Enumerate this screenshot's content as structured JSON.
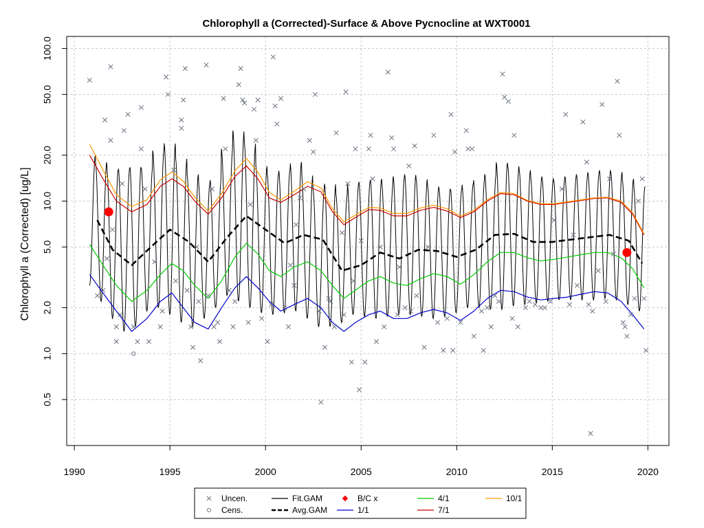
{
  "chart_data": {
    "type": "line",
    "title": "Chlorophyll a (Corrected)-Surface & Above Pycnocline at WXT0001",
    "xlabel": "",
    "ylabel": "Chlorophyll a (Corrected) [ug/L]",
    "xlim": [
      1989.6,
      2021.1
    ],
    "ylim": [
      0.25,
      120
    ],
    "y_log_scale": true,
    "grid": true,
    "x_ticks": [
      1990,
      1995,
      2000,
      2005,
      2010,
      2015,
      2020
    ],
    "x_tick_labels": [
      "1990",
      "1995",
      "2000",
      "2005",
      "2010",
      "2015",
      "2020"
    ],
    "y_ticks": [
      0.5,
      1,
      2,
      5,
      10,
      20,
      50,
      100
    ],
    "y_tick_labels": [
      "0.5",
      "1.0",
      "2.0",
      "5.0",
      "10.0",
      "20.0",
      "50.0",
      "100.0"
    ],
    "colors": {
      "uncen": "#6b7280",
      "cens": "#6b7280",
      "fit_gam": "#000000",
      "avg_gam": "#000000",
      "bc": "#ff0000",
      "d1_1": "#0000cc",
      "d4_1": "#00cc00",
      "d7_1": "#cc0000",
      "d10_1": "#ff9900"
    },
    "legend": {
      "position": "bottom",
      "entries": [
        {
          "key": "uncen",
          "label": "Uncen."
        },
        {
          "key": "cens",
          "label": "Cens."
        },
        {
          "key": "fit_gam",
          "label": "Fit.GAM"
        },
        {
          "key": "avg_gam",
          "label": "Avg.GAM"
        },
        {
          "key": "bc",
          "label": "B/C x"
        },
        {
          "key": "d1_1",
          "label": "1/1"
        },
        {
          "key": "d4_1",
          "label": "4/1"
        },
        {
          "key": "d7_1",
          "label": "7/1"
        },
        {
          "key": "d10_1",
          "label": "10/1"
        }
      ]
    },
    "bc_points": [
      {
        "x": 1991.8,
        "y": 8.5
      },
      {
        "x": 2018.9,
        "y": 4.6
      }
    ],
    "series": [
      {
        "name": "Avg.GAM",
        "key": "avg_gam",
        "x": [
          1991.2,
          1992,
          1993,
          1994,
          1995,
          1996,
          1997,
          1998,
          1999,
          2000,
          2001,
          2002,
          2003,
          2004,
          2005,
          2006,
          2007,
          2008,
          2009,
          2010,
          2011,
          2012,
          2013,
          2014,
          2015,
          2016,
          2017,
          2018,
          2019,
          2019.7
        ],
        "y": [
          7.5,
          4.8,
          3.8,
          5.0,
          6.5,
          5.4,
          4.0,
          5.8,
          8.0,
          6.5,
          5.3,
          6.0,
          5.6,
          3.5,
          3.8,
          4.6,
          4.2,
          4.8,
          4.7,
          4.3,
          4.8,
          6.0,
          6.1,
          5.4,
          5.4,
          5.6,
          5.8,
          6.0,
          5.5,
          3.9
        ]
      },
      {
        "name": "1/1",
        "key": "d1_1",
        "x": [
          1990.8,
          1991.5,
          1992.2,
          1993,
          1993.8,
          1994.5,
          1995.1,
          1995.7,
          1996.3,
          1997,
          1997.7,
          1998.4,
          1999,
          1999.6,
          2000.2,
          2000.8,
          2001.5,
          2002.2,
          2002.9,
          2003.5,
          2004.1,
          2004.7,
          2005.4,
          2006,
          2006.7,
          2007.4,
          2008.1,
          2008.8,
          2009.5,
          2010.2,
          2010.9,
          2011.6,
          2012.3,
          2013,
          2013.7,
          2014.4,
          2015.1,
          2015.8,
          2016.5,
          2017.2,
          2017.9,
          2018.6,
          2019.2,
          2019.8
        ],
        "y": [
          3.3,
          2.5,
          1.9,
          1.4,
          1.7,
          2.2,
          2.5,
          2.0,
          1.6,
          1.45,
          2.0,
          2.7,
          3.2,
          2.7,
          2.2,
          1.9,
          2.1,
          2.3,
          2.0,
          1.6,
          1.4,
          1.6,
          1.8,
          1.9,
          1.7,
          1.7,
          1.85,
          1.95,
          1.85,
          1.65,
          1.9,
          2.3,
          2.6,
          2.55,
          2.35,
          2.25,
          2.3,
          2.35,
          2.45,
          2.55,
          2.5,
          2.2,
          1.8,
          1.45
        ]
      },
      {
        "name": "4/1",
        "key": "d4_1",
        "x": [
          1990.8,
          1991.5,
          1992.2,
          1993,
          1993.8,
          1994.5,
          1995.1,
          1995.7,
          1996.3,
          1997,
          1997.7,
          1998.4,
          1999,
          1999.6,
          2000.2,
          2000.8,
          2001.5,
          2002.2,
          2002.9,
          2003.5,
          2004.1,
          2004.7,
          2005.4,
          2006,
          2006.7,
          2007.4,
          2008.1,
          2008.8,
          2009.5,
          2010.2,
          2010.9,
          2011.6,
          2012.3,
          2013,
          2013.7,
          2014.4,
          2015.1,
          2015.8,
          2016.5,
          2017.2,
          2017.9,
          2018.6,
          2019.2,
          2019.8
        ],
        "y": [
          5.2,
          3.8,
          2.8,
          2.2,
          2.6,
          3.3,
          3.9,
          3.5,
          2.8,
          2.3,
          3.0,
          4.3,
          5.3,
          4.5,
          3.5,
          3.2,
          3.7,
          4.0,
          3.5,
          2.8,
          2.3,
          2.6,
          3.0,
          3.2,
          2.9,
          2.8,
          3.1,
          3.35,
          3.2,
          2.85,
          3.3,
          4.0,
          4.6,
          4.6,
          4.25,
          4.05,
          4.15,
          4.3,
          4.45,
          4.6,
          4.6,
          4.25,
          3.6,
          2.7
        ]
      },
      {
        "name": "7/1",
        "key": "d7_1",
        "x": [
          1990.8,
          1991.5,
          1992.2,
          1993,
          1993.8,
          1994.5,
          1995.1,
          1995.7,
          1996.3,
          1997,
          1997.7,
          1998.4,
          1999,
          1999.6,
          2000.2,
          2000.8,
          2001.5,
          2002.2,
          2002.9,
          2003.5,
          2004.1,
          2004.7,
          2005.4,
          2006,
          2006.7,
          2007.4,
          2008.1,
          2008.8,
          2009.5,
          2010.2,
          2010.9,
          2011.6,
          2012.3,
          2013,
          2013.7,
          2014.4,
          2015.1,
          2015.8,
          2016.5,
          2017.2,
          2017.9,
          2018.6,
          2019.2,
          2019.8
        ],
        "y": [
          20,
          14,
          10,
          8.5,
          9.5,
          12.5,
          14,
          12.5,
          10,
          8.2,
          10.5,
          14.5,
          17,
          14,
          10.5,
          9.8,
          11,
          12.5,
          11.5,
          8.5,
          7.0,
          7.8,
          8.8,
          8.7,
          8.0,
          8.0,
          8.7,
          9.1,
          8.6,
          7.8,
          8.5,
          10.0,
          11.2,
          11.0,
          10.0,
          9.5,
          9.5,
          9.8,
          10.1,
          10.4,
          10.5,
          9.8,
          8.2,
          6.0
        ]
      },
      {
        "name": "10/1",
        "key": "d10_1",
        "x": [
          1990.8,
          1991.5,
          1992.2,
          1993,
          1993.8,
          1994.5,
          1995.1,
          1995.7,
          1996.3,
          1997,
          1997.7,
          1998.4,
          1999,
          1999.6,
          2000.2,
          2000.8,
          2001.5,
          2002.2,
          2002.9,
          2003.5,
          2004.1,
          2004.7,
          2005.4,
          2006,
          2006.7,
          2007.4,
          2008.1,
          2008.8,
          2009.5,
          2010.2,
          2010.9,
          2011.6,
          2012.3,
          2013,
          2013.7,
          2014.4,
          2015.1,
          2015.8,
          2016.5,
          2017.2,
          2017.9,
          2018.6,
          2019.2,
          2019.8
        ],
        "y": [
          23.5,
          16,
          11,
          9.2,
          10.2,
          13.8,
          15.5,
          13.5,
          10.6,
          8.6,
          11.2,
          15.8,
          19,
          15.5,
          11.4,
          10.2,
          11.6,
          13.4,
          12.2,
          8.9,
          7.3,
          8.1,
          9.1,
          9.0,
          8.3,
          8.3,
          9.0,
          9.4,
          8.9,
          8.0,
          8.7,
          10.2,
          11.4,
          11.2,
          10.1,
          9.6,
          9.6,
          9.9,
          10.2,
          10.5,
          10.6,
          10.0,
          8.4,
          6.1
        ]
      }
    ],
    "fit_gam": {
      "name": "Fit.GAM",
      "x_start": 1990.8,
      "x_end": 2019.85,
      "cycle_years": 0.5,
      "peaks": [
        20,
        18,
        16,
        16.5,
        17,
        16.5,
        21.5,
        24,
        19,
        15,
        13,
        14,
        22,
        29,
        24,
        17,
        15,
        16,
        18,
        15,
        12,
        13,
        11,
        13,
        13.5,
        14,
        13,
        14.5,
        15,
        14,
        12.5,
        12,
        12,
        13,
        14,
        15,
        18,
        17,
        16,
        14.5,
        14,
        14,
        14.5,
        15,
        15.5,
        16,
        15.5,
        14,
        12.5
      ],
      "troughs": [
        2.8,
        2.2,
        1.7,
        1.4,
        1.5,
        1.9,
        2.0,
        1.8,
        1.6,
        1.5,
        1.7,
        2.0,
        2.4,
        2.2,
        2.0,
        1.85,
        1.8,
        1.85,
        1.9,
        1.7,
        1.5,
        1.5,
        1.6,
        1.8,
        1.75,
        1.7,
        1.75,
        1.8,
        1.8,
        1.75,
        1.7,
        1.75,
        1.85,
        2.0,
        2.0,
        1.95,
        1.95,
        2.05,
        2.1,
        2.15,
        2.2,
        2.25,
        2.25,
        2.25,
        2.25,
        2.3,
        2.25,
        2.1,
        1.9
      ]
    },
    "uncen_points": [
      {
        "x": 1990.8,
        "y": 62
      },
      {
        "x": 1991.2,
        "y": 2.4
      },
      {
        "x": 1991.5,
        "y": 2.6
      },
      {
        "x": 1991.6,
        "y": 34
      },
      {
        "x": 1991.7,
        "y": 4.2
      },
      {
        "x": 1991.9,
        "y": 25
      },
      {
        "x": 1991.9,
        "y": 76
      },
      {
        "x": 1992.0,
        "y": 6.5
      },
      {
        "x": 1992.2,
        "y": 1.5
      },
      {
        "x": 1992.2,
        "y": 1.2
      },
      {
        "x": 1992.4,
        "y": 1.8
      },
      {
        "x": 1992.5,
        "y": 13
      },
      {
        "x": 1992.6,
        "y": 29
      },
      {
        "x": 1992.8,
        "y": 37
      },
      {
        "x": 1993.1,
        "y": 1.5
      },
      {
        "x": 1993.3,
        "y": 1.2
      },
      {
        "x": 1993.5,
        "y": 22
      },
      {
        "x": 1993.5,
        "y": 41
      },
      {
        "x": 1993.7,
        "y": 12
      },
      {
        "x": 1993.9,
        "y": 1.2
      },
      {
        "x": 1994.2,
        "y": 4.0
      },
      {
        "x": 1994.5,
        "y": 1.5
      },
      {
        "x": 1994.6,
        "y": 1.9
      },
      {
        "x": 1994.8,
        "y": 65
      },
      {
        "x": 1994.9,
        "y": 50
      },
      {
        "x": 1995.2,
        "y": 16
      },
      {
        "x": 1995.3,
        "y": 3.0
      },
      {
        "x": 1995.6,
        "y": 34
      },
      {
        "x": 1995.6,
        "y": 30
      },
      {
        "x": 1995.7,
        "y": 46
      },
      {
        "x": 1995.8,
        "y": 74
      },
      {
        "x": 1995.9,
        "y": 2.6
      },
      {
        "x": 1996.1,
        "y": 1.5
      },
      {
        "x": 1996.2,
        "y": 1.1
      },
      {
        "x": 1996.4,
        "y": 5.0
      },
      {
        "x": 1996.5,
        "y": 2.2
      },
      {
        "x": 1996.6,
        "y": 0.9
      },
      {
        "x": 1996.9,
        "y": 78
      },
      {
        "x": 1997.0,
        "y": 2.4
      },
      {
        "x": 1997.2,
        "y": 12
      },
      {
        "x": 1997.3,
        "y": 1.5
      },
      {
        "x": 1997.5,
        "y": 1.6
      },
      {
        "x": 1997.6,
        "y": 1.2
      },
      {
        "x": 1997.8,
        "y": 47
      },
      {
        "x": 1997.9,
        "y": 22
      },
      {
        "x": 1998.1,
        "y": 2.6
      },
      {
        "x": 1998.3,
        "y": 1.5
      },
      {
        "x": 1998.4,
        "y": 2.2
      },
      {
        "x": 1998.6,
        "y": 58
      },
      {
        "x": 1998.7,
        "y": 74
      },
      {
        "x": 1998.8,
        "y": 46
      },
      {
        "x": 1998.9,
        "y": 44
      },
      {
        "x": 1999.1,
        "y": 1.6
      },
      {
        "x": 1999.2,
        "y": 9.5
      },
      {
        "x": 1999.4,
        "y": 40
      },
      {
        "x": 1999.5,
        "y": 25
      },
      {
        "x": 1999.6,
        "y": 46
      },
      {
        "x": 1999.8,
        "y": 1.7
      },
      {
        "x": 2000.1,
        "y": 1.2
      },
      {
        "x": 2000.3,
        "y": 2.1
      },
      {
        "x": 2000.4,
        "y": 88
      },
      {
        "x": 2000.5,
        "y": 42
      },
      {
        "x": 2000.6,
        "y": 32
      },
      {
        "x": 2000.8,
        "y": 47
      },
      {
        "x": 2001.0,
        "y": 2.0
      },
      {
        "x": 2001.2,
        "y": 1.5
      },
      {
        "x": 2001.3,
        "y": 3.8
      },
      {
        "x": 2001.5,
        "y": 2.8
      },
      {
        "x": 2001.6,
        "y": 7.0
      },
      {
        "x": 2001.8,
        "y": 10.5
      },
      {
        "x": 2002.0,
        "y": 12
      },
      {
        "x": 2002.3,
        "y": 25
      },
      {
        "x": 2002.5,
        "y": 21
      },
      {
        "x": 2002.6,
        "y": 50
      },
      {
        "x": 2002.8,
        "y": 1.9
      },
      {
        "x": 2002.9,
        "y": 0.48
      },
      {
        "x": 2003.1,
        "y": 1.1
      },
      {
        "x": 2003.3,
        "y": 2.3
      },
      {
        "x": 2003.4,
        "y": 2.2
      },
      {
        "x": 2003.6,
        "y": 1.5
      },
      {
        "x": 2003.7,
        "y": 28
      },
      {
        "x": 2004.0,
        "y": 6.2
      },
      {
        "x": 2004.1,
        "y": 1.8
      },
      {
        "x": 2004.2,
        "y": 52
      },
      {
        "x": 2004.3,
        "y": 13
      },
      {
        "x": 2004.5,
        "y": 0.88
      },
      {
        "x": 2004.6,
        "y": 3.0
      },
      {
        "x": 2004.7,
        "y": 22
      },
      {
        "x": 2004.9,
        "y": 0.58
      },
      {
        "x": 2005.0,
        "y": 5.5
      },
      {
        "x": 2005.2,
        "y": 0.88
      },
      {
        "x": 2005.4,
        "y": 22
      },
      {
        "x": 2005.5,
        "y": 27
      },
      {
        "x": 2005.6,
        "y": 14
      },
      {
        "x": 2005.8,
        "y": 1.2
      },
      {
        "x": 2006.0,
        "y": 5.0
      },
      {
        "x": 2006.2,
        "y": 1.5
      },
      {
        "x": 2006.4,
        "y": 70
      },
      {
        "x": 2006.6,
        "y": 26
      },
      {
        "x": 2006.7,
        "y": 22
      },
      {
        "x": 2006.9,
        "y": 1.8
      },
      {
        "x": 2007.0,
        "y": 3.7
      },
      {
        "x": 2007.3,
        "y": 2.0
      },
      {
        "x": 2007.5,
        "y": 17
      },
      {
        "x": 2007.6,
        "y": 1.9
      },
      {
        "x": 2007.8,
        "y": 23
      },
      {
        "x": 2007.9,
        "y": 2.4
      },
      {
        "x": 2008.3,
        "y": 1.1
      },
      {
        "x": 2008.5,
        "y": 5.0
      },
      {
        "x": 2008.8,
        "y": 27
      },
      {
        "x": 2009.0,
        "y": 1.6
      },
      {
        "x": 2009.3,
        "y": 1.05
      },
      {
        "x": 2009.5,
        "y": 1.7
      },
      {
        "x": 2009.7,
        "y": 37
      },
      {
        "x": 2009.8,
        "y": 1.05
      },
      {
        "x": 2009.9,
        "y": 21
      },
      {
        "x": 2010.2,
        "y": 1.6
      },
      {
        "x": 2010.5,
        "y": 29
      },
      {
        "x": 2010.6,
        "y": 22
      },
      {
        "x": 2010.8,
        "y": 22
      },
      {
        "x": 2010.9,
        "y": 1.3
      },
      {
        "x": 2011.3,
        "y": 1.9
      },
      {
        "x": 2011.4,
        "y": 1.05
      },
      {
        "x": 2011.6,
        "y": 2.0
      },
      {
        "x": 2011.8,
        "y": 1.5
      },
      {
        "x": 2012.0,
        "y": 2.4
      },
      {
        "x": 2012.2,
        "y": 2.2
      },
      {
        "x": 2012.4,
        "y": 68
      },
      {
        "x": 2012.5,
        "y": 48
      },
      {
        "x": 2012.7,
        "y": 45
      },
      {
        "x": 2012.9,
        "y": 1.7
      },
      {
        "x": 2013.0,
        "y": 27
      },
      {
        "x": 2013.2,
        "y": 1.5
      },
      {
        "x": 2013.6,
        "y": 2.0
      },
      {
        "x": 2013.8,
        "y": 2.2
      },
      {
        "x": 2014.1,
        "y": 2.1
      },
      {
        "x": 2014.4,
        "y": 2.0
      },
      {
        "x": 2014.6,
        "y": 2.0
      },
      {
        "x": 2014.9,
        "y": 2.2
      },
      {
        "x": 2015.1,
        "y": 7.5
      },
      {
        "x": 2015.5,
        "y": 12
      },
      {
        "x": 2015.7,
        "y": 37
      },
      {
        "x": 2015.9,
        "y": 2.1
      },
      {
        "x": 2016.1,
        "y": 6.0
      },
      {
        "x": 2016.3,
        "y": 2.8
      },
      {
        "x": 2016.6,
        "y": 33
      },
      {
        "x": 2016.8,
        "y": 18
      },
      {
        "x": 2016.9,
        "y": 2.1
      },
      {
        "x": 2017.1,
        "y": 1.9
      },
      {
        "x": 2017.0,
        "y": 0.3
      },
      {
        "x": 2017.4,
        "y": 3.5
      },
      {
        "x": 2017.6,
        "y": 43
      },
      {
        "x": 2017.8,
        "y": 2.2
      },
      {
        "x": 2018.0,
        "y": 14
      },
      {
        "x": 2018.2,
        "y": 4.5
      },
      {
        "x": 2018.4,
        "y": 61
      },
      {
        "x": 2018.5,
        "y": 27
      },
      {
        "x": 2018.7,
        "y": 1.6
      },
      {
        "x": 2018.8,
        "y": 1.5
      },
      {
        "x": 2018.9,
        "y": 1.3
      },
      {
        "x": 2019.1,
        "y": 1.8
      },
      {
        "x": 2019.3,
        "y": 2.3
      },
      {
        "x": 2019.5,
        "y": 10
      },
      {
        "x": 2019.7,
        "y": 14
      },
      {
        "x": 2019.8,
        "y": 2.3
      },
      {
        "x": 2019.9,
        "y": 1.05
      }
    ],
    "cens_points": [
      {
        "x": 1993.1,
        "y": 1.0
      }
    ]
  }
}
